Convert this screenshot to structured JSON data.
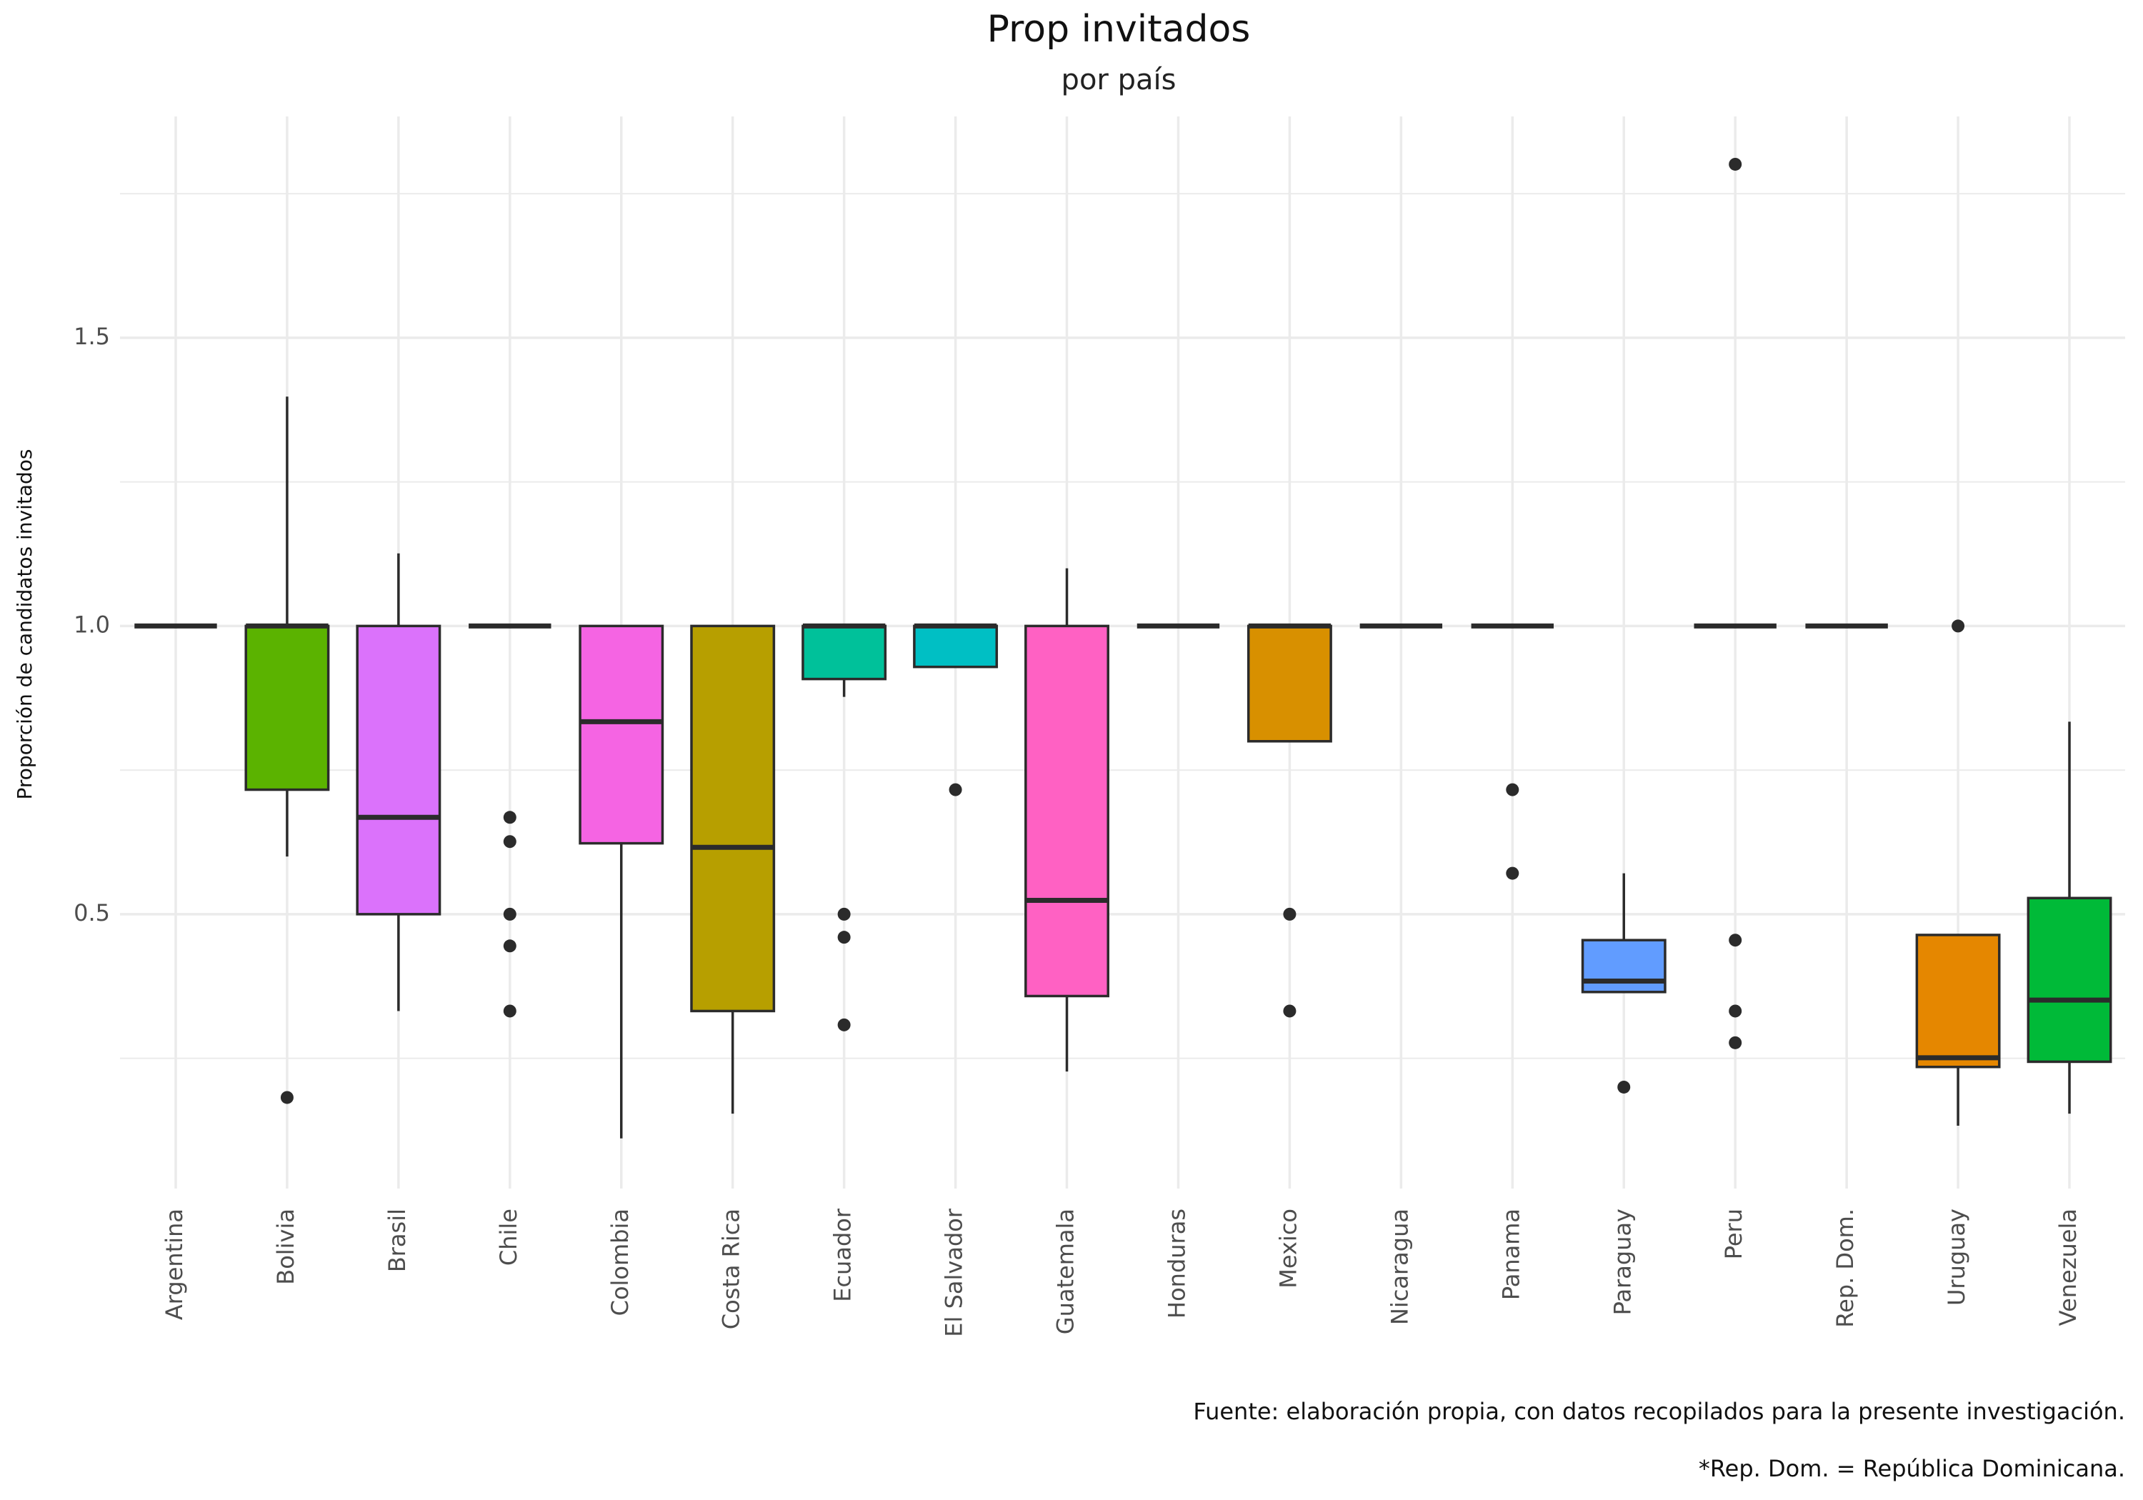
{
  "chart_data": {
    "type": "box",
    "title": "Prop invitados",
    "subtitle": "por país",
    "y_label": "Proporción de candidatos invitados",
    "caption": "Fuente: elaboración propia, con datos recopilados para la presente investigación.",
    "note": "*Rep. Dom. = República Dominicana.",
    "categories": [
      "Argentina",
      "Bolivia",
      "Brasil",
      "Chile",
      "Colombia",
      "Costa Rica",
      "Ecuador",
      "El Salvador",
      "Guatemala",
      "Honduras",
      "Mexico",
      "Nicaragua",
      "Panama",
      "Paraguay",
      "Peru",
      "Rep. Dom.",
      "Uruguay",
      "Venezuela"
    ],
    "boxes": [
      {
        "color": "#F8766D",
        "lower": 1,
        "q1": 1,
        "median": 1,
        "q3": 1,
        "upper": 1,
        "outliers": []
      },
      {
        "color": "#5BB300",
        "lower": 0.6,
        "q1": 0.716,
        "median": 1,
        "q3": 1,
        "upper": 1.398,
        "outliers": [
          0.182
        ]
      },
      {
        "color": "#DB72FB",
        "lower": 0.332,
        "q1": 0.5,
        "median": 0.668,
        "q3": 1,
        "upper": 1.126,
        "outliers": []
      },
      {
        "color": "#E7861B",
        "lower": 1,
        "q1": 1,
        "median": 1,
        "q3": 1,
        "upper": 1,
        "outliers": [
          0.668,
          0.626,
          0.5,
          0.445,
          0.332
        ]
      },
      {
        "color": "#F564E3",
        "lower": 0.111,
        "q1": 0.623,
        "median": 0.834,
        "q3": 1,
        "upper": 1,
        "outliers": []
      },
      {
        "color": "#B79F00",
        "lower": 0.154,
        "q1": 0.332,
        "median": 0.616,
        "q3": 1,
        "upper": 1,
        "outliers": []
      },
      {
        "color": "#00C19A",
        "lower": 0.877,
        "q1": 0.908,
        "median": 1,
        "q3": 1,
        "upper": 1,
        "outliers": [
          0.5,
          0.46,
          0.308
        ]
      },
      {
        "color": "#00BFC4",
        "lower": 0.929,
        "q1": 0.929,
        "median": 1,
        "q3": 1,
        "upper": 1,
        "outliers": [
          0.716
        ]
      },
      {
        "color": "#FF61C3",
        "lower": 0.227,
        "q1": 0.358,
        "median": 0.524,
        "q3": 1,
        "upper": 1.1,
        "outliers": []
      },
      {
        "color": "#7CAE00",
        "lower": 1,
        "q1": 1,
        "median": 1,
        "q3": 1,
        "upper": 1,
        "outliers": []
      },
      {
        "color": "#D89000",
        "lower": 0.8,
        "q1": 0.8,
        "median": 1,
        "q3": 1,
        "upper": 1,
        "outliers": [
          0.5,
          0.332
        ]
      },
      {
        "color": "#00BA38",
        "lower": 1,
        "q1": 1,
        "median": 1,
        "q3": 1,
        "upper": 1,
        "outliers": []
      },
      {
        "color": "#00B9E3",
        "lower": 1,
        "q1": 1,
        "median": 1,
        "q3": 1,
        "upper": 1,
        "outliers": [
          0.716,
          0.571
        ]
      },
      {
        "color": "#619CFF",
        "lower": 0.365,
        "q1": 0.365,
        "median": 0.384,
        "q3": 0.455,
        "upper": 0.571,
        "outliers": [
          0.2
        ]
      },
      {
        "color": "#93AA00",
        "lower": 1,
        "q1": 1,
        "median": 1,
        "q3": 1,
        "upper": 1,
        "outliers": [
          1.801,
          0.455,
          0.332,
          0.277
        ]
      },
      {
        "color": "#AE87FF",
        "lower": 1,
        "q1": 1,
        "median": 1,
        "q3": 1,
        "upper": 1,
        "outliers": []
      },
      {
        "color": "#E58700",
        "lower": 0.133,
        "q1": 0.235,
        "median": 0.251,
        "q3": 0.464,
        "upper": 0.464,
        "outliers": [
          1
        ]
      },
      {
        "color": "#00BA38",
        "lower": 0.154,
        "q1": 0.244,
        "median": 0.351,
        "q3": 0.528,
        "upper": 0.834,
        "outliers": []
      }
    ],
    "ylim": [
      0.024,
      1.884
    ],
    "yticks": [
      0.5,
      {
        "value": 1,
        "label": "1.0"
      },
      1.5
    ],
    "minor_yticks": [
      0.25,
      0.75,
      1.25,
      1.75
    ],
    "grid": true
  }
}
